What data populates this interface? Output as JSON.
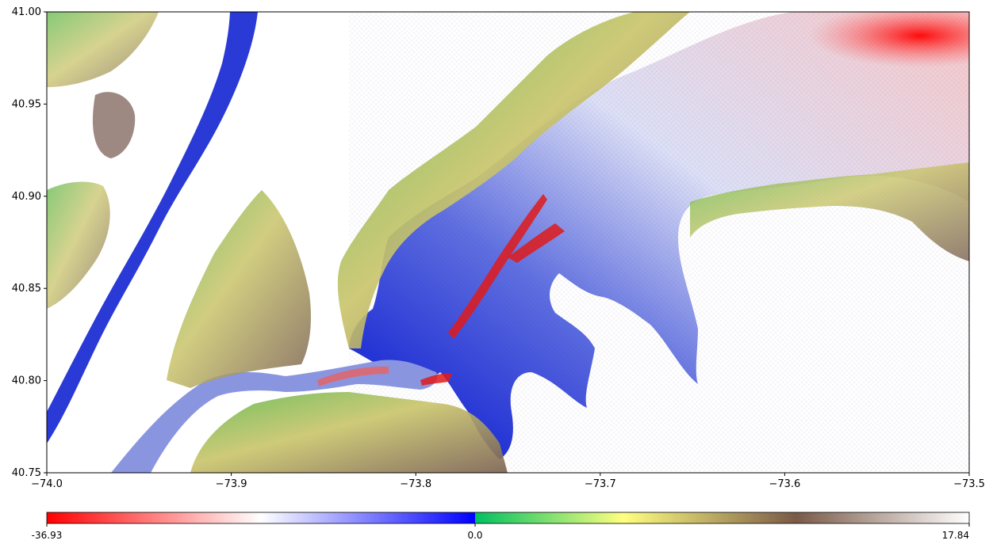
{
  "chart_data": {
    "type": "heatmap",
    "title": "",
    "xlabel": "",
    "ylabel": "",
    "xlim": [
      -74.0,
      -73.5
    ],
    "ylim": [
      40.75,
      41.0
    ],
    "x_ticks": [
      "−74.0",
      "−73.9",
      "−73.8",
      "−73.7",
      "−73.6",
      "−73.5"
    ],
    "y_ticks": [
      "40.75",
      "40.80",
      "40.85",
      "40.90",
      "40.95",
      "41.00"
    ],
    "colorbar": {
      "min": -36.93,
      "zero": 0.0,
      "max": 17.84,
      "labels": [
        "-36.93",
        "0.0",
        "17.84"
      ],
      "orientation": "horizontal",
      "negative_colors": [
        "#ff0000",
        "#ffffff",
        "#0000ff"
      ],
      "positive_colors": [
        "#00c060",
        "#ffff80",
        "#7a5a48",
        "#ffffff"
      ]
    },
    "grid": false,
    "legend": "none"
  }
}
